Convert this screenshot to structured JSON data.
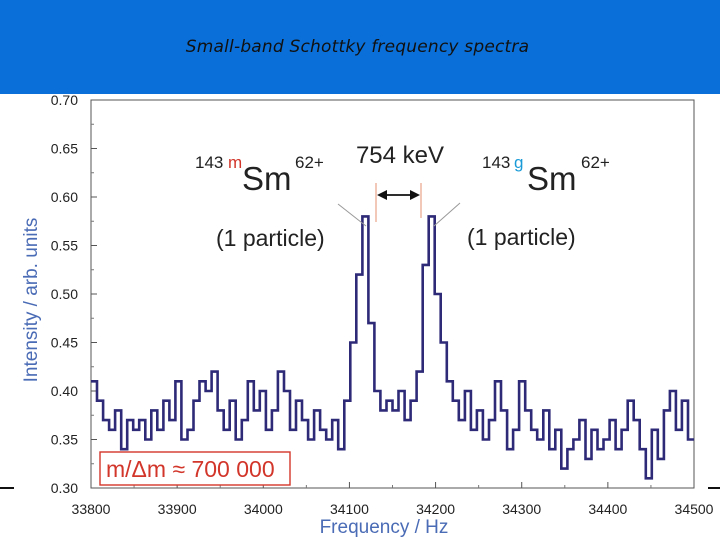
{
  "banner": {
    "title": "Small-band Schottky frequency spectra",
    "color": "#0a6fd8"
  },
  "chart_data": {
    "type": "line",
    "xlabel": "Frequency / Hz",
    "ylabel": "Intensity / arb. units",
    "xlim": [
      33800,
      34500
    ],
    "ylim": [
      0.3,
      0.7
    ],
    "xticks": [
      "33800",
      "33900",
      "34000",
      "34100",
      "34200",
      "34300",
      "34400",
      "34500"
    ],
    "yticks": [
      "0.30",
      "0.35",
      "0.40",
      "0.45",
      "0.50",
      "0.55",
      "0.60",
      "0.65",
      "0.70"
    ],
    "line_color": "#2e2a78",
    "step": true,
    "x": [
      33800,
      33807,
      33814,
      33821,
      33828,
      33835,
      33842,
      33849,
      33856,
      33863,
      33870,
      33877,
      33884,
      33891,
      33898,
      33905,
      33912,
      33919,
      33926,
      33933,
      33940,
      33947,
      33954,
      33961,
      33968,
      33975,
      33982,
      33989,
      33996,
      34003,
      34010,
      34017,
      34024,
      34031,
      34038,
      34045,
      34052,
      34059,
      34066,
      34073,
      34080,
      34087,
      34094,
      34101,
      34108,
      34115,
      34122,
      34129,
      34136,
      34143,
      34150,
      34157,
      34164,
      34171,
      34178,
      34185,
      34192,
      34199,
      34206,
      34213,
      34220,
      34227,
      34234,
      34241,
      34248,
      34255,
      34262,
      34269,
      34276,
      34283,
      34290,
      34297,
      34304,
      34311,
      34318,
      34325,
      34332,
      34339,
      34346,
      34353,
      34360,
      34367,
      34374,
      34381,
      34388,
      34395,
      34402,
      34409,
      34416,
      34423,
      34430,
      34437,
      34444,
      34451,
      34458,
      34465,
      34472,
      34479,
      34486,
      34493
    ],
    "y": [
      0.41,
      0.39,
      0.37,
      0.36,
      0.38,
      0.34,
      0.37,
      0.36,
      0.37,
      0.35,
      0.38,
      0.36,
      0.39,
      0.37,
      0.41,
      0.35,
      0.36,
      0.39,
      0.41,
      0.4,
      0.42,
      0.38,
      0.36,
      0.39,
      0.35,
      0.37,
      0.41,
      0.38,
      0.4,
      0.36,
      0.38,
      0.42,
      0.4,
      0.36,
      0.39,
      0.37,
      0.35,
      0.38,
      0.36,
      0.35,
      0.37,
      0.34,
      0.39,
      0.45,
      0.52,
      0.58,
      0.47,
      0.4,
      0.38,
      0.39,
      0.38,
      0.4,
      0.37,
      0.39,
      0.42,
      0.53,
      0.58,
      0.5,
      0.45,
      0.41,
      0.39,
      0.37,
      0.4,
      0.36,
      0.38,
      0.35,
      0.37,
      0.41,
      0.38,
      0.34,
      0.36,
      0.41,
      0.38,
      0.36,
      0.35,
      0.38,
      0.34,
      0.36,
      0.32,
      0.34,
      0.35,
      0.37,
      0.33,
      0.36,
      0.34,
      0.35,
      0.37,
      0.34,
      0.36,
      0.39,
      0.37,
      0.34,
      0.31,
      0.36,
      0.33,
      0.38,
      0.4,
      0.36,
      0.39,
      0.35
    ],
    "annotations": {
      "left_isotope": {
        "mass": "143",
        "state": "m",
        "symbol": "Sm",
        "charge": "62+",
        "count": "(1 particle)"
      },
      "right_isotope": {
        "mass": "143",
        "state": "g",
        "symbol": "Sm",
        "charge": "62+",
        "count": "(1 particle)"
      },
      "energy": "754 keV",
      "resolution": "m/Δm ≈ 700 000"
    },
    "colors": {
      "metastable": "#d2352a",
      "ground": "#1a9bd7",
      "resolution_box": "#d2352a"
    }
  }
}
